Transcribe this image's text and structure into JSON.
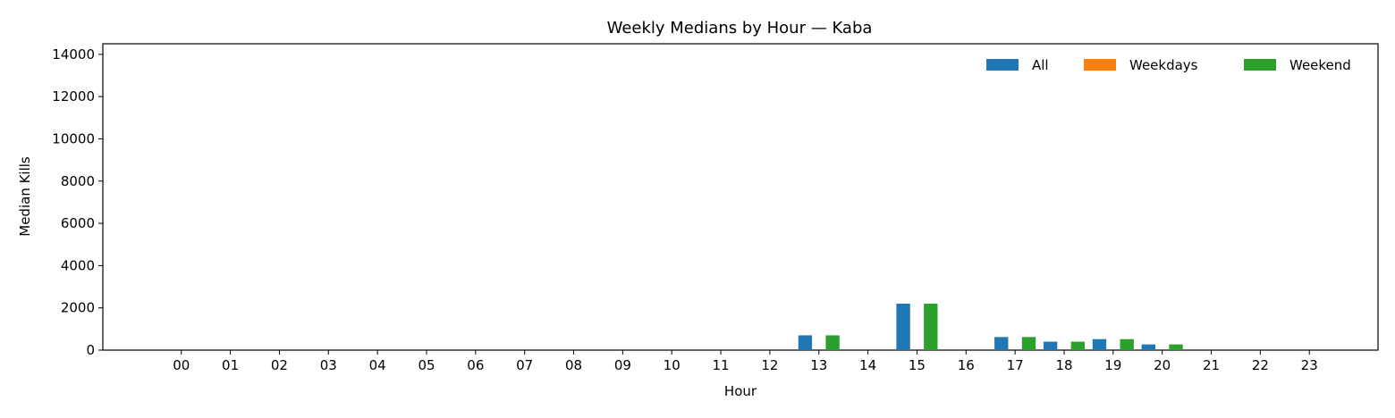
{
  "chart_data": {
    "type": "bar",
    "title": "Weekly Medians by Hour — Kaba",
    "xlabel": "Hour",
    "ylabel": "Median Kills",
    "ylim": [
      0,
      14500
    ],
    "yticks": [
      0,
      2000,
      4000,
      6000,
      8000,
      10000,
      12000,
      14000
    ],
    "categories": [
      "00",
      "01",
      "02",
      "03",
      "04",
      "05",
      "06",
      "07",
      "08",
      "09",
      "10",
      "11",
      "12",
      "13",
      "14",
      "15",
      "16",
      "17",
      "18",
      "19",
      "20",
      "21",
      "22",
      "23"
    ],
    "series": [
      {
        "name": "All",
        "color": "#1f77b4",
        "values": [
          0,
          0,
          0,
          0,
          0,
          0,
          0,
          0,
          0,
          0,
          0,
          0,
          0,
          700,
          0,
          2200,
          0,
          620,
          400,
          520,
          270,
          0,
          0,
          0
        ]
      },
      {
        "name": "Weekdays",
        "color": "#ff7f0e",
        "values": [
          0,
          0,
          0,
          0,
          0,
          0,
          0,
          0,
          0,
          0,
          0,
          0,
          0,
          0,
          0,
          0,
          0,
          0,
          0,
          0,
          0,
          0,
          0,
          0
        ]
      },
      {
        "name": "Weekend",
        "color": "#2ca02c",
        "values": [
          0,
          0,
          0,
          0,
          0,
          0,
          0,
          0,
          0,
          0,
          0,
          0,
          0,
          700,
          0,
          2200,
          0,
          620,
          400,
          520,
          270,
          0,
          0,
          0
        ]
      }
    ],
    "legend": "top-right",
    "grid": false
  }
}
